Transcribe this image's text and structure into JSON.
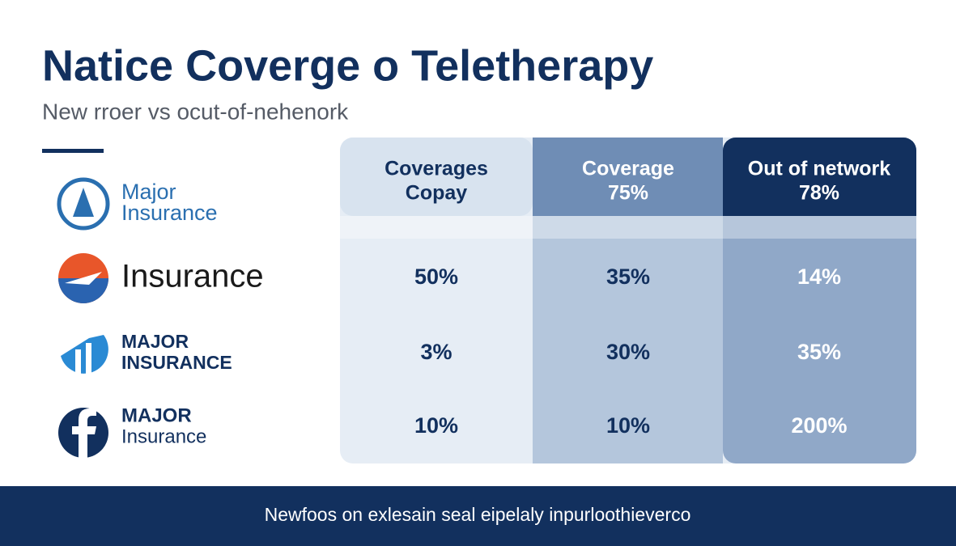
{
  "header": {
    "title": "Natice Coverge o Teletherapy",
    "subtitle": "New rroer vs ocut-of-nehenork"
  },
  "logos": [
    {
      "lines": [
        "Major",
        "Insurance"
      ]
    },
    {
      "lines": [
        "Insurance"
      ]
    },
    {
      "lines": [
        "MAJOR",
        "INSURANCE"
      ]
    },
    {
      "lines": [
        "MAJOR",
        "Insurance"
      ]
    }
  ],
  "table": {
    "columns": [
      [
        "Coverages",
        "Copay"
      ],
      [
        "Coverage",
        "75%"
      ],
      [
        "Out of network",
        "78%"
      ]
    ],
    "rows": [
      [
        "50%",
        "35%",
        "14%"
      ],
      [
        "3%",
        "30%",
        "35%"
      ],
      [
        "10%",
        "10%",
        "200%"
      ]
    ]
  },
  "footer": {
    "text": "Newfoos on exlesain seal eipelaly inpurloothieverco"
  }
}
